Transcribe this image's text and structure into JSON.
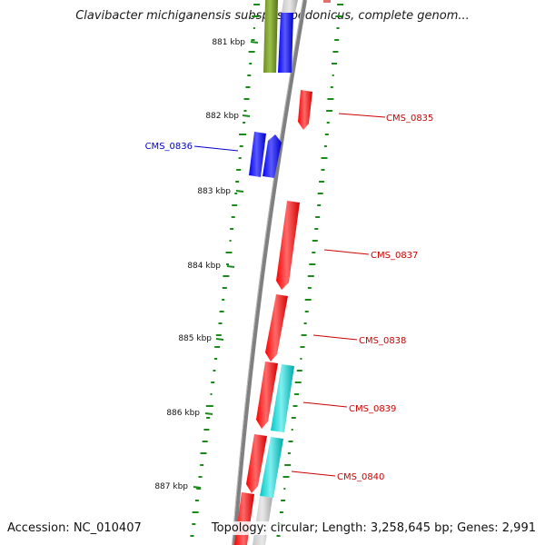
{
  "title": "Clavibacter michiganensis subsp. sepedonicus, complete genom...",
  "footer": {
    "accession": "Accession: NC_010407",
    "summary": "Topology: circular; Length: 3,258,645 bp; Genes: 2,991"
  },
  "kbp_labels": [
    "881 kbp",
    "882 kbp",
    "883 kbp",
    "884 kbp",
    "885 kbp",
    "886 kbp",
    "887 kbp"
  ],
  "gene_labels": [
    {
      "text": "CMS_0835",
      "color": "#cc0000"
    },
    {
      "text": "CMS_0836",
      "color": "#0000cc"
    },
    {
      "text": "CMS_0837",
      "color": "#cc0000"
    },
    {
      "text": "CMS_0838",
      "color": "#cc0000"
    },
    {
      "text": "CMS_0839",
      "color": "#cc0000"
    },
    {
      "text": "CMS_0840",
      "color": "#cc0000"
    }
  ],
  "colors": {
    "forward_cds": "#ff0000",
    "blue_cds": "#0000ff",
    "cyan_feature": "#00c8c8",
    "olive_feature": "#6b8e23",
    "gray_feature": "#bdbdbd",
    "backbone": "#808080",
    "gc_ticks": "#1a8a1a"
  }
}
